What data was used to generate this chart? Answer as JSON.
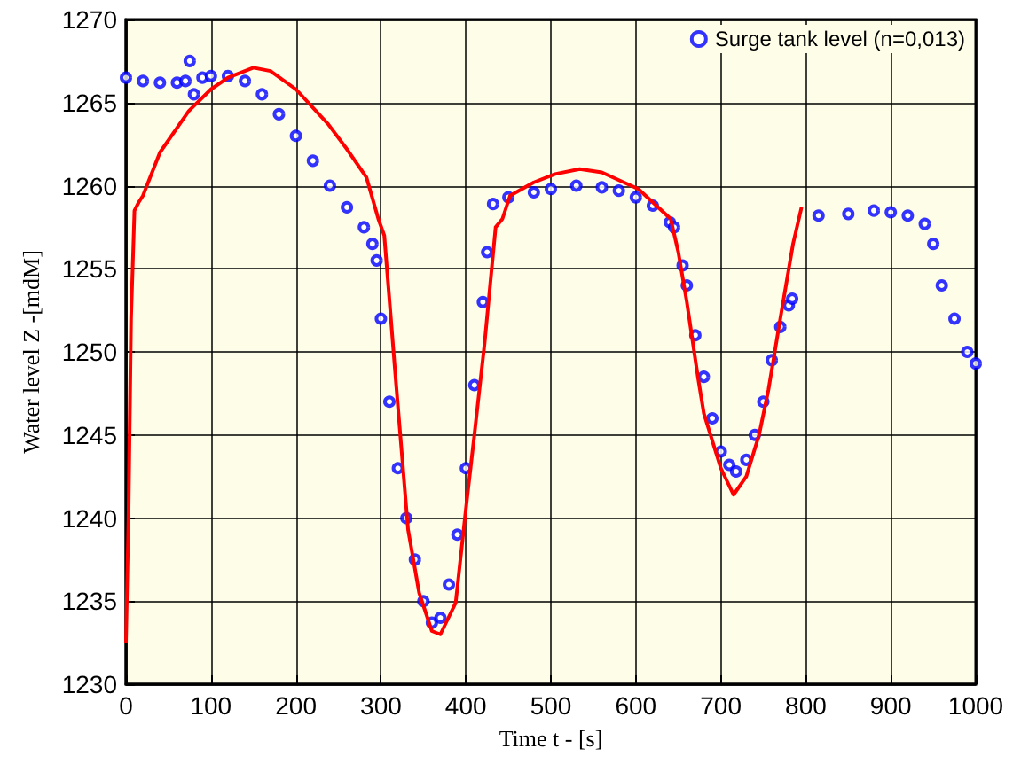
{
  "chart_data": {
    "type": "scatter",
    "xlabel": "Time t - [s]",
    "ylabel": "Water level Z -[mdM]",
    "xlim": [
      0,
      1000
    ],
    "ylim": [
      1230,
      1270
    ],
    "xticks": [
      0,
      100,
      200,
      300,
      400,
      500,
      600,
      700,
      800,
      900,
      1000
    ],
    "yticks": [
      1230,
      1235,
      1240,
      1245,
      1250,
      1255,
      1260,
      1265,
      1270
    ],
    "grid": true,
    "legend": "top right",
    "series": [
      {
        "name": "Surge tank level (n=0,013)",
        "type": "scatter",
        "marker": "circle",
        "color": "#0000ff",
        "x": [
          0,
          20,
          40,
          60,
          70,
          75,
          80,
          90,
          100,
          120,
          140,
          160,
          180,
          200,
          220,
          240,
          260,
          280,
          290,
          295,
          300,
          310,
          320,
          330,
          340,
          350,
          360,
          370,
          380,
          390,
          400,
          410,
          420,
          425,
          432,
          450,
          480,
          500,
          530,
          560,
          580,
          600,
          620,
          640,
          645,
          655,
          660,
          670,
          680,
          690,
          700,
          710,
          718,
          730,
          740,
          750,
          760,
          770,
          780,
          784,
          815,
          850,
          880,
          900,
          920,
          940,
          950,
          960,
          975,
          990,
          1000
        ],
        "values": [
          1266.5,
          1266.3,
          1266.2,
          1266.2,
          1266.3,
          1267.5,
          1265.5,
          1266.5,
          1266.6,
          1266.6,
          1266.3,
          1265.5,
          1264.3,
          1263,
          1261.5,
          1260,
          1258.7,
          1257.5,
          1256.5,
          1255.5,
          1252,
          1247,
          1243,
          1240,
          1237.5,
          1235,
          1233.7,
          1234,
          1236,
          1239,
          1243,
          1248,
          1253,
          1256,
          1258.9,
          1259.3,
          1259.6,
          1259.8,
          1260,
          1259.9,
          1259.7,
          1259.3,
          1258.8,
          1257.8,
          1257.5,
          1255.2,
          1254,
          1251,
          1248.5,
          1246,
          1244,
          1243.2,
          1242.8,
          1243.5,
          1245,
          1247,
          1249.5,
          1251.5,
          1252.8,
          1253.2,
          1258.2,
          1258.3,
          1258.5,
          1258.4,
          1258.2,
          1257.7,
          1256.5,
          1254,
          1252,
          1250,
          1249.3
        ]
      },
      {
        "type": "line",
        "marker": "none",
        "color": "#ff0000",
        "x": [
          0,
          3,
          6,
          10,
          15,
          20,
          40,
          74,
          100,
          120,
          150,
          170,
          200,
          238,
          260,
          283,
          297,
          304,
          318,
          332,
          345,
          360,
          370,
          388,
          401,
          410,
          422,
          435,
          443,
          452,
          480,
          505,
          534,
          560,
          603,
          641,
          650,
          660,
          673,
          680,
          700,
          715,
          730,
          745,
          756,
          770,
          785,
          795
        ],
        "values": [
          1232.5,
          1240,
          1252,
          1258.5,
          1259,
          1259.4,
          1262,
          1264.5,
          1265.8,
          1266.5,
          1267.1,
          1266.9,
          1265.8,
          1263.7,
          1262.2,
          1260.5,
          1258,
          1257,
          1248,
          1239.3,
          1235.5,
          1233.2,
          1233,
          1234.9,
          1241,
          1245,
          1250.5,
          1257.5,
          1258,
          1259.4,
          1260.2,
          1260.7,
          1261,
          1260.8,
          1259.8,
          1258,
          1256,
          1253,
          1248.5,
          1246.3,
          1243,
          1241.4,
          1242.5,
          1245,
          1247.7,
          1252,
          1256.5,
          1258.7
        ]
      }
    ]
  }
}
